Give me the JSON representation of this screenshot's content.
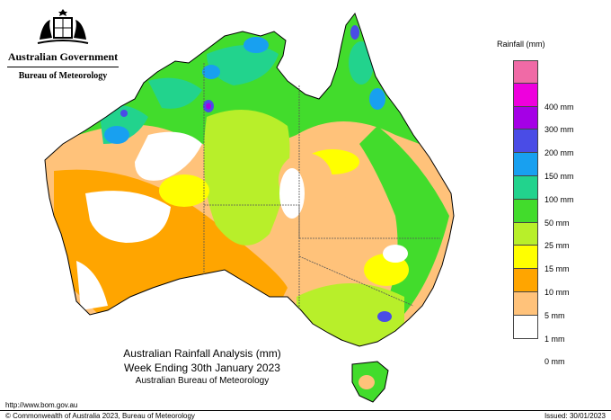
{
  "header": {
    "government": "Australian Government",
    "bureau": "Bureau of Meteorology"
  },
  "legend": {
    "title": "Rainfall (mm)",
    "classes": [
      {
        "label": "",
        "color": "#f06aa6"
      },
      {
        "label": "400 mm",
        "color": "#ee00dd"
      },
      {
        "label": "300 mm",
        "color": "#a500e6"
      },
      {
        "label": "200 mm",
        "color": "#4a4ce6"
      },
      {
        "label": "150 mm",
        "color": "#18a0f0"
      },
      {
        "label": "100 mm",
        "color": "#22d38d"
      },
      {
        "label": "50 mm",
        "color": "#42dc2c"
      },
      {
        "label": "25 mm",
        "color": "#b8ef2a"
      },
      {
        "label": "15 mm",
        "color": "#ffff00"
      },
      {
        "label": "10 mm",
        "color": "#ffa500"
      },
      {
        "label": "5 mm",
        "color": "#ffc27a"
      },
      {
        "label": "1 mm",
        "color": "#ffffff"
      },
      {
        "label": "0 mm",
        "color": ""
      }
    ]
  },
  "caption": {
    "line1": "Australian Rainfall Analysis (mm)",
    "line2": "Week Ending 30th January 2023",
    "line3": "Australian Bureau of Meteorology"
  },
  "footer": {
    "url": "http://www.bom.gov.au",
    "copyright": "© Commonwealth of Australia 2023, Bureau of Meteorology",
    "issued": "Issued: 30/01/2023"
  }
}
